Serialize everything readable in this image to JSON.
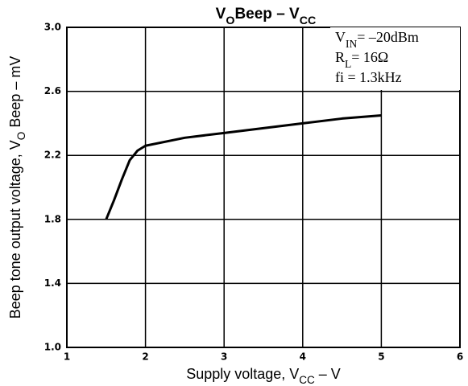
{
  "chart_data": {
    "type": "line",
    "title": [
      "V",
      "O",
      "Beep  –  V",
      "CC"
    ],
    "x_label": [
      "Supply voltage, V",
      "CC",
      " – V"
    ],
    "y_label": [
      "Beep tone output voltage, V",
      "O",
      " Beep – mV"
    ],
    "annotations": [
      [
        "V",
        "IN",
        "= –20dBm"
      ],
      [
        "R",
        "L",
        "= 16Ω"
      ],
      [
        "fi = 1.3kHz"
      ]
    ],
    "xlim": [
      1,
      6
    ],
    "xticks": [
      1,
      2,
      3,
      4,
      5,
      6
    ],
    "ylim": [
      1.0,
      3.0
    ],
    "yticks": [
      {
        "value": 1.0,
        "label": "1.0"
      },
      1.4,
      1.8,
      2.2,
      2.6,
      {
        "value": 3.0,
        "label": "3.0"
      }
    ],
    "grid": true,
    "series": [
      {
        "color": "#000000",
        "x": [
          1.5,
          1.6,
          1.7,
          1.8,
          1.9,
          2.0,
          2.5,
          3.0,
          3.5,
          4.0,
          4.5,
          5.0
        ],
        "values": [
          1.8,
          1.92,
          2.05,
          2.17,
          2.23,
          2.26,
          2.31,
          2.34,
          2.37,
          2.4,
          2.43,
          2.45
        ]
      }
    ]
  }
}
